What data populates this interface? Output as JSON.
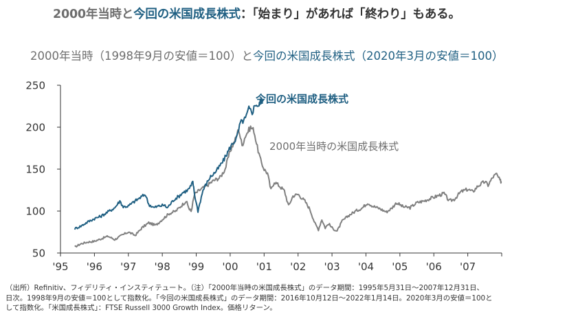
{
  "header": {
    "title_gray": "2000年当時と",
    "title_blue": "今回の米国成長株式",
    "title_dark": "：「始まり」があれば「終わり」もある。",
    "subtitle_gray": "2000年当時（1998年9月の安値＝100）と",
    "subtitle_blue": "今回の米国成長株式（2020年3月の安値＝100）"
  },
  "colors": {
    "blue": "#1f5f82",
    "gray": "#7f7f7f",
    "axis": "#333333"
  },
  "chart_data": {
    "type": "line",
    "title": "2000年当時（1998年9月の安値＝100）と今回の米国成長株式（2020年3月の安値＝100）",
    "xlabel": "",
    "ylabel": "",
    "ylim": [
      50,
      250
    ],
    "yticks": [
      50,
      100,
      150,
      200,
      250
    ],
    "xlim": [
      1995,
      2008
    ],
    "xtick_labels": [
      "'95",
      "'96",
      "'97",
      "'98",
      "'99",
      "'00",
      "'01",
      "'02",
      "'03",
      "'04",
      "'05",
      "'06",
      "'07"
    ],
    "grid": false,
    "series": [
      {
        "name": "2000年当時の米国成長株式",
        "color": "#7f7f7f",
        "label_text": "2000年当時の米国成長株式",
        "points": [
          [
            1995.42,
            57
          ],
          [
            1995.6,
            61
          ],
          [
            1995.8,
            63
          ],
          [
            1996.0,
            64
          ],
          [
            1996.2,
            67
          ],
          [
            1996.4,
            70
          ],
          [
            1996.6,
            66
          ],
          [
            1996.8,
            71
          ],
          [
            1997.0,
            75
          ],
          [
            1997.2,
            71
          ],
          [
            1997.4,
            80
          ],
          [
            1997.6,
            86
          ],
          [
            1997.8,
            83
          ],
          [
            1998.0,
            90
          ],
          [
            1998.2,
            97
          ],
          [
            1998.4,
            100
          ],
          [
            1998.55,
            106
          ],
          [
            1998.7,
            112
          ],
          [
            1998.8,
            102
          ],
          [
            1998.85,
            100
          ],
          [
            1998.95,
            120
          ],
          [
            1999.1,
            125
          ],
          [
            1999.3,
            130
          ],
          [
            1999.5,
            136
          ],
          [
            1999.7,
            140
          ],
          [
            1999.85,
            150
          ],
          [
            2000.0,
            172
          ],
          [
            2000.15,
            185
          ],
          [
            2000.25,
            198
          ],
          [
            2000.35,
            178
          ],
          [
            2000.45,
            190
          ],
          [
            2000.6,
            200
          ],
          [
            2000.7,
            196
          ],
          [
            2000.8,
            176
          ],
          [
            2000.9,
            160
          ],
          [
            2001.0,
            150
          ],
          [
            2001.1,
            145
          ],
          [
            2001.2,
            125
          ],
          [
            2001.3,
            135
          ],
          [
            2001.45,
            130
          ],
          [
            2001.6,
            124
          ],
          [
            2001.72,
            106
          ],
          [
            2001.85,
            118
          ],
          [
            2002.0,
            120
          ],
          [
            2002.2,
            112
          ],
          [
            2002.35,
            102
          ],
          [
            2002.5,
            85
          ],
          [
            2002.6,
            78
          ],
          [
            2002.7,
            90
          ],
          [
            2002.8,
            80
          ],
          [
            2002.9,
            85
          ],
          [
            2003.0,
            80
          ],
          [
            2003.15,
            76
          ],
          [
            2003.3,
            88
          ],
          [
            2003.5,
            95
          ],
          [
            2003.7,
            100
          ],
          [
            2003.9,
            104
          ],
          [
            2004.05,
            110
          ],
          [
            2004.2,
            106
          ],
          [
            2004.4,
            103
          ],
          [
            2004.6,
            99
          ],
          [
            2004.75,
            103
          ],
          [
            2004.9,
            110
          ],
          [
            2005.1,
            105
          ],
          [
            2005.3,
            104
          ],
          [
            2005.5,
            110
          ],
          [
            2005.7,
            112
          ],
          [
            2005.9,
            115
          ],
          [
            2006.1,
            118
          ],
          [
            2006.3,
            121
          ],
          [
            2006.45,
            112
          ],
          [
            2006.6,
            114
          ],
          [
            2006.8,
            123
          ],
          [
            2007.0,
            126
          ],
          [
            2007.15,
            123
          ],
          [
            2007.3,
            130
          ],
          [
            2007.5,
            135
          ],
          [
            2007.6,
            131
          ],
          [
            2007.75,
            141
          ],
          [
            2007.85,
            144
          ],
          [
            2007.95,
            136
          ],
          [
            2008.0,
            135
          ]
        ]
      },
      {
        "name": "今回の米国成長株式",
        "color": "#1f5f82",
        "label_text": "今回の米国成長株式",
        "points": [
          [
            1995.42,
            79
          ],
          [
            1995.6,
            82
          ],
          [
            1995.8,
            87
          ],
          [
            1996.0,
            91
          ],
          [
            1996.2,
            94
          ],
          [
            1996.4,
            99
          ],
          [
            1996.6,
            104
          ],
          [
            1996.75,
            112
          ],
          [
            1996.85,
            105
          ],
          [
            1997.0,
            106
          ],
          [
            1997.2,
            112
          ],
          [
            1997.35,
            116
          ],
          [
            1997.5,
            120
          ],
          [
            1997.6,
            108
          ],
          [
            1997.75,
            104
          ],
          [
            1997.9,
            106
          ],
          [
            1998.05,
            107
          ],
          [
            1998.15,
            104
          ],
          [
            1998.35,
            114
          ],
          [
            1998.5,
            118
          ],
          [
            1998.6,
            122
          ],
          [
            1998.75,
            125
          ],
          [
            1998.85,
            130
          ],
          [
            1998.9,
            135
          ],
          [
            1998.95,
            120
          ],
          [
            1999.05,
            100
          ],
          [
            1999.2,
            125
          ],
          [
            1999.4,
            140
          ],
          [
            1999.6,
            148
          ],
          [
            1999.8,
            160
          ],
          [
            2000.0,
            176
          ],
          [
            2000.2,
            188
          ],
          [
            2000.3,
            205
          ],
          [
            2000.45,
            210
          ],
          [
            2000.55,
            222
          ],
          [
            2000.65,
            218
          ],
          [
            2000.75,
            228
          ],
          [
            2000.85,
            225
          ],
          [
            2000.9,
            233
          ],
          [
            2000.95,
            228
          ]
        ]
      }
    ]
  },
  "footer": {
    "line1": "（出所）Refinitiv、フィデリティ・インスティテュート。（注）「2000年当時の米国成長株式」のデータ期間：1995年5月31日～2007年12月31日、",
    "line2": "日次。1998年9月の安値＝100として指数化。「今回の米国成長株式」のデータ期間：2016年10月12日～2022年1月14日。2020年3月の安値＝100と",
    "line3": "して指数化。「米国成長株式」：FTSE Russell 3000 Growth Index。価格リターン。"
  }
}
